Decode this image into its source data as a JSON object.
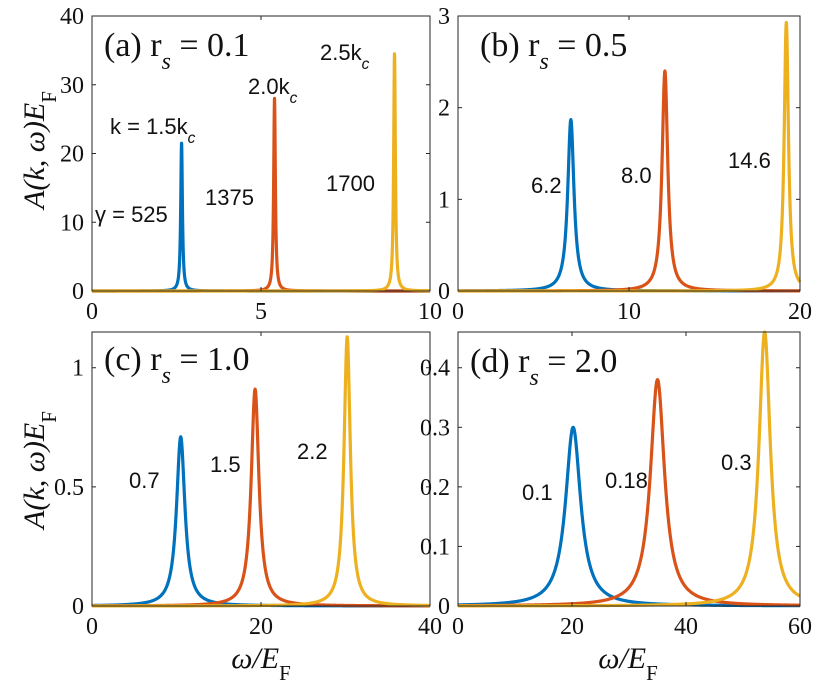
{
  "figure": {
    "y_axis_label": "A(k, ω)E_F",
    "x_axis_label": "ω/E_F"
  },
  "colors": {
    "blue": "#0072BD",
    "red": "#D95319",
    "yellow": "#EDB120"
  },
  "chart_data": [
    {
      "type": "line",
      "title": "(a) r_s = 0.1",
      "xlabel": "",
      "ylabel": "A(k, ω)E_F",
      "xlim": [
        0,
        10
      ],
      "ylim": [
        0,
        40
      ],
      "xticks": [
        0,
        5,
        10
      ],
      "yticks": [
        0,
        10,
        20,
        30,
        40
      ],
      "series": [
        {
          "name": "k = 1.5k_c",
          "peak_x": 2.65,
          "peak_y": 21.5,
          "gamma_label": "γ = 525"
        },
        {
          "name": "2.0k_c",
          "peak_x": 5.4,
          "peak_y": 28.0,
          "gamma_label": "1375"
        },
        {
          "name": "2.5k_c",
          "peak_x": 8.95,
          "peak_y": 34.5,
          "gamma_label": "1700"
        }
      ],
      "annotations": [
        "k = 1.5k_c",
        "2.0k_c",
        "2.5k_c",
        "γ = 525",
        "1375",
        "1700"
      ]
    },
    {
      "type": "line",
      "title": "(b) r_s = 0.5",
      "xlabel": "",
      "ylabel": "",
      "xlim": [
        0,
        20
      ],
      "ylim": [
        0,
        3
      ],
      "xticks": [
        0,
        10,
        20
      ],
      "yticks": [
        0,
        1,
        2,
        3
      ],
      "series": [
        {
          "name": "k = 1.5k_c",
          "peak_x": 6.6,
          "peak_y": 1.87,
          "gamma_label": "6.2"
        },
        {
          "name": "2.0k_c",
          "peak_x": 12.1,
          "peak_y": 2.4,
          "gamma_label": "8.0"
        },
        {
          "name": "2.5k_c",
          "peak_x": 19.2,
          "peak_y": 2.93,
          "gamma_label": "14.6"
        }
      ],
      "annotations": [
        "6.2",
        "8.0",
        "14.6"
      ]
    },
    {
      "type": "line",
      "title": "(c) r_s = 1.0",
      "xlabel": "ω/E_F",
      "ylabel": "A(k, ω)E_F",
      "xlim": [
        0,
        40
      ],
      "ylim": [
        0,
        1.15
      ],
      "xticks": [
        0,
        20,
        40
      ],
      "yticks": [
        0,
        0.5,
        1
      ],
      "series": [
        {
          "name": "k = 1.5k_c",
          "peak_x": 10.5,
          "peak_y": 0.71,
          "gamma_label": "0.7"
        },
        {
          "name": "2.0k_c",
          "peak_x": 19.3,
          "peak_y": 0.91,
          "gamma_label": "1.5"
        },
        {
          "name": "2.5k_c",
          "peak_x": 30.2,
          "peak_y": 1.13,
          "gamma_label": "2.2"
        }
      ],
      "annotations": [
        "0.7",
        "1.5",
        "2.2"
      ]
    },
    {
      "type": "line",
      "title": "(d) r_s = 2.0",
      "xlabel": "ω/E_F",
      "ylabel": "",
      "xlim": [
        0,
        60
      ],
      "ylim": [
        0,
        0.46
      ],
      "xticks": [
        0,
        20,
        40,
        60
      ],
      "yticks": [
        0,
        0.1,
        0.2,
        0.3,
        0.4
      ],
      "series": [
        {
          "name": "k = 1.5k_c",
          "peak_x": 20.2,
          "peak_y": 0.3,
          "gamma_label": "0.1"
        },
        {
          "name": "2.0k_c",
          "peak_x": 35.0,
          "peak_y": 0.38,
          "gamma_label": "0.18"
        },
        {
          "name": "2.5k_c",
          "peak_x": 53.8,
          "peak_y": 0.46,
          "gamma_label": "0.3"
        }
      ],
      "annotations": [
        "0.1",
        "0.18",
        "0.3"
      ]
    }
  ]
}
